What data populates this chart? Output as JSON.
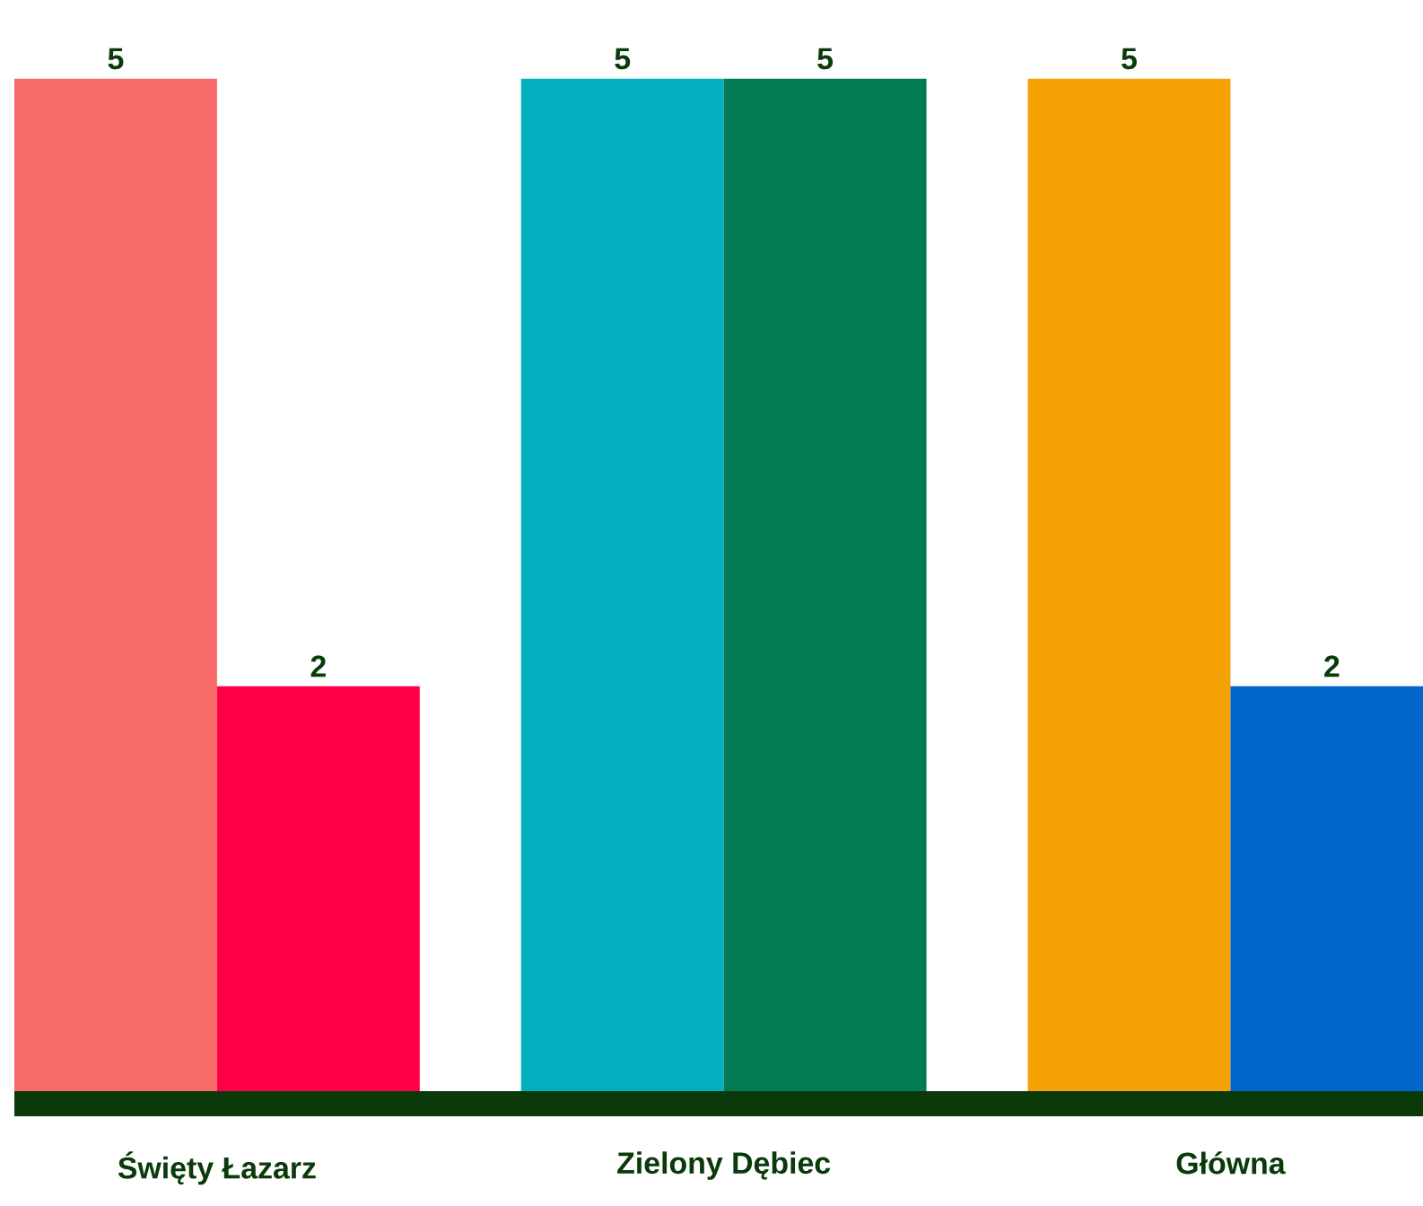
{
  "chart_data": {
    "type": "bar",
    "categories": [
      "Święty Łazarz",
      "Zielony Dębiec",
      "Główna"
    ],
    "series": [
      {
        "colors": [
          "#f96a6a",
          "#03b0c0",
          "#f5a205"
        ],
        "values": [
          5,
          5,
          5
        ]
      },
      {
        "colors": [
          "#ff0048",
          "#027a53",
          "#0066cc"
        ],
        "values": [
          2,
          5,
          2
        ]
      }
    ],
    "data_labels": true
  }
}
